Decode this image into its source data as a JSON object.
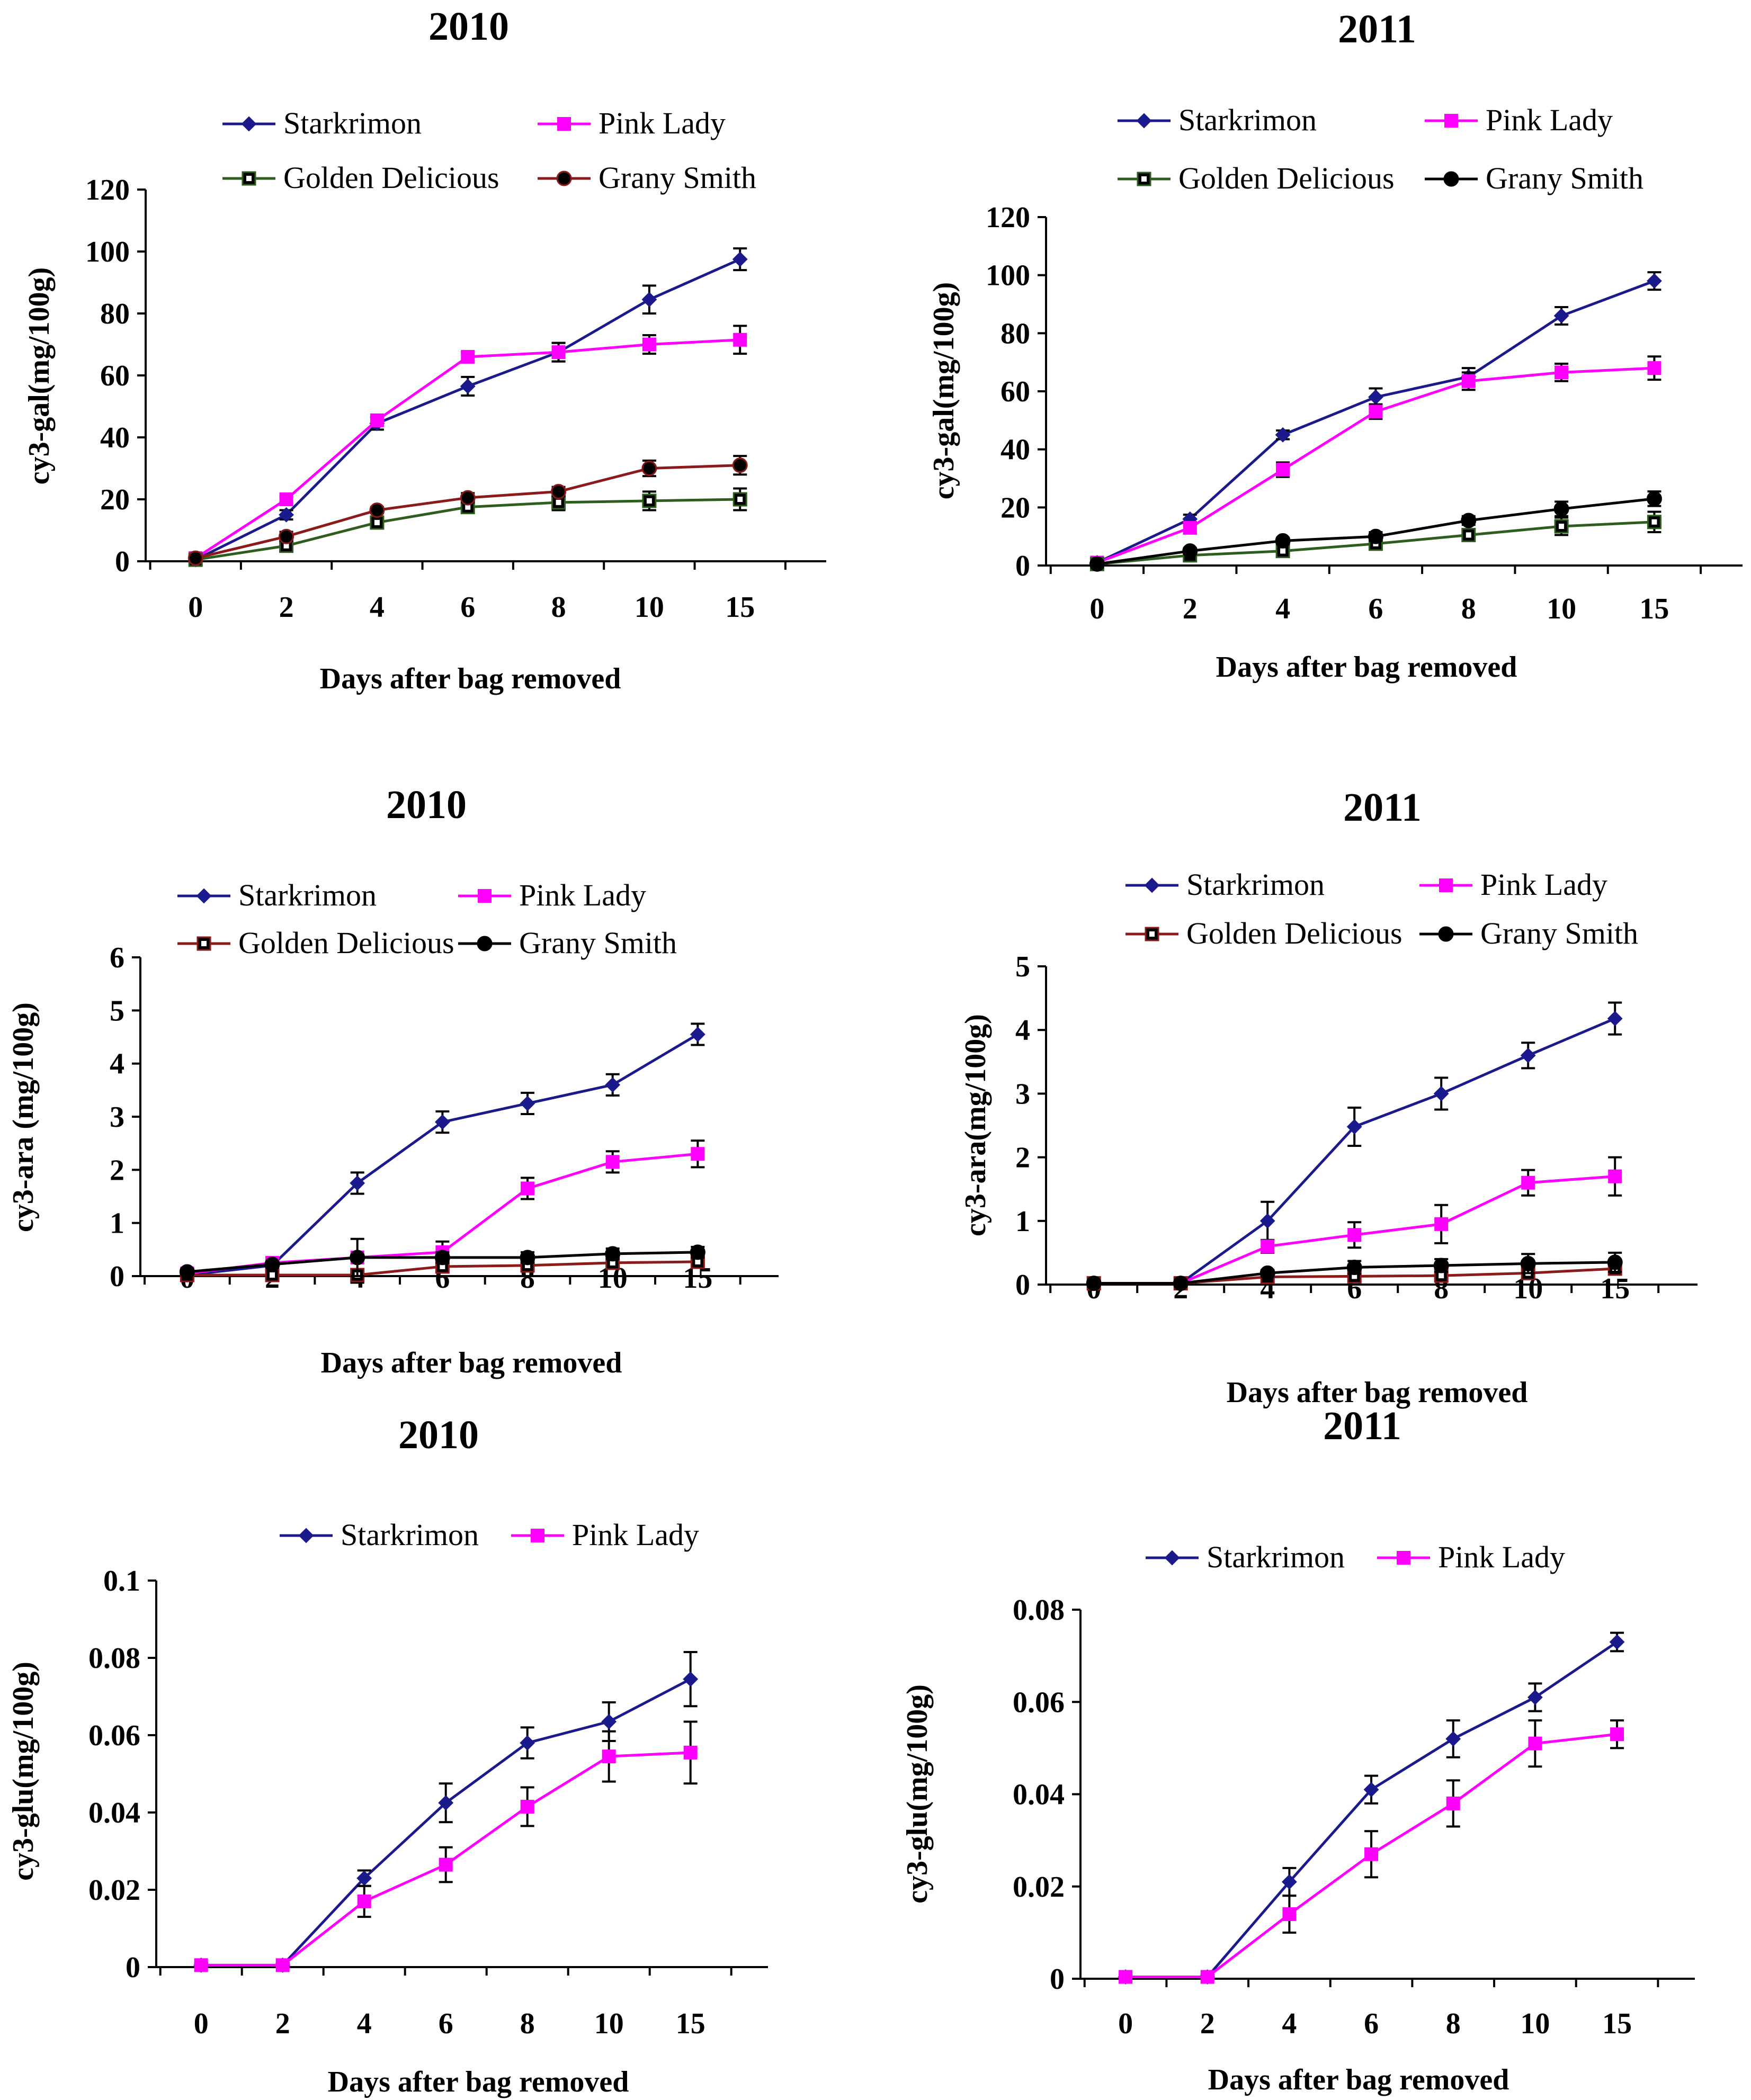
{
  "colors": {
    "starkrimon": "#1a1a8c",
    "pink_lady": "#ff00ff",
    "golden_delicious": "#2e5e1e",
    "grany_smith_brown": "#8b1a1a",
    "grany_smith_black": "#000000",
    "golden_delicious_red": "#8b1a1a"
  },
  "chart_data": [
    {
      "type": "line",
      "title": "2010",
      "xlabel": "Days after bag removed",
      "ylabel": "cy3-gal(mg/100g)",
      "categories": [
        "0",
        "2",
        "4",
        "6",
        "8",
        "10",
        "15"
      ],
      "ylim": [
        0,
        120
      ],
      "yticks": [
        "0",
        "20",
        "40",
        "60",
        "80",
        "100",
        "120"
      ],
      "series": [
        {
          "name": "Starkrimon",
          "marker": "diamond",
          "color": "#1a1a8c",
          "values": [
            0.5,
            15,
            44.5,
            56.5,
            67.5,
            84.5,
            97.5
          ],
          "errors": [
            1,
            1.5,
            2,
            3,
            3,
            4.5,
            3.5
          ]
        },
        {
          "name": "Pink Lady",
          "marker": "square",
          "color": "#ff00ff",
          "values": [
            1,
            20,
            45.5,
            66,
            67.5,
            70,
            71.5
          ],
          "errors": [
            1,
            1,
            1,
            1.5,
            3,
            3,
            4.5
          ]
        },
        {
          "name": "Golden Delicious",
          "marker": "hsquare",
          "color": "#2e5e1e",
          "values": [
            0.5,
            5,
            12.5,
            17.5,
            19,
            19.5,
            20
          ],
          "errors": [
            0.5,
            1,
            1.5,
            1.5,
            2.5,
            3,
            3.5
          ]
        },
        {
          "name": "Grany Smith",
          "marker": "circle",
          "color": "#8b1a1a",
          "values": [
            1,
            8,
            16.5,
            20.5,
            22.5,
            30,
            31
          ],
          "errors": [
            0.5,
            1.5,
            1,
            1.5,
            1.5,
            2.5,
            3
          ]
        }
      ]
    },
    {
      "type": "line",
      "title": "2011",
      "xlabel": "Days after bag removed",
      "ylabel": "cy3-gal(mg/100g)",
      "categories": [
        "0",
        "2",
        "4",
        "6",
        "8",
        "10",
        "15"
      ],
      "ylim": [
        0,
        120
      ],
      "yticks": [
        "0",
        "20",
        "40",
        "60",
        "80",
        "100",
        "120"
      ],
      "series": [
        {
          "name": "Starkrimon",
          "marker": "diamond",
          "color": "#1a1a8c",
          "values": [
            1,
            16,
            45,
            58,
            65,
            86,
            98
          ],
          "errors": [
            0.5,
            1.5,
            1.5,
            3,
            3,
            3,
            3
          ]
        },
        {
          "name": "Pink Lady",
          "marker": "square",
          "color": "#ff00ff",
          "values": [
            1,
            13,
            33,
            53,
            63.5,
            66.5,
            68
          ],
          "errors": [
            0.5,
            2,
            2.5,
            2.5,
            3,
            3,
            4
          ]
        },
        {
          "name": "Golden Delicious",
          "marker": "hsquare",
          "color": "#2e5e1e",
          "values": [
            0.5,
            3.5,
            5,
            7.5,
            10.5,
            13.5,
            15
          ],
          "errors": [
            0.5,
            1,
            1.5,
            1.5,
            1.5,
            3,
            3.5
          ]
        },
        {
          "name": "Grany Smith",
          "marker": "circle",
          "color": "#000000",
          "values": [
            0.5,
            5,
            8.5,
            10,
            15.5,
            19.5,
            23
          ],
          "errors": [
            0.5,
            1,
            1,
            1.5,
            1.5,
            2.5,
            2.5
          ]
        }
      ]
    },
    {
      "type": "line",
      "title": "2010",
      "xlabel": "Days after bag removed",
      "ylabel": "cy3-ara (mg/100g)",
      "categories": [
        "0",
        "2",
        "4",
        "6",
        "8",
        "10",
        "15"
      ],
      "ylim": [
        0,
        6
      ],
      "yticks": [
        "0",
        "1",
        "2",
        "3",
        "4",
        "5",
        "6"
      ],
      "series": [
        {
          "name": "Starkrimon",
          "marker": "diamond",
          "color": "#1a1a8c",
          "values": [
            0.02,
            0.2,
            1.75,
            2.9,
            3.25,
            3.6,
            4.55
          ],
          "errors": [
            0.1,
            0.1,
            0.2,
            0.2,
            0.2,
            0.2,
            0.2
          ]
        },
        {
          "name": "Pink Lady",
          "marker": "square",
          "color": "#ff00ff",
          "values": [
            0.05,
            0.25,
            0.35,
            0.45,
            1.65,
            2.15,
            2.3
          ],
          "errors": [
            0.05,
            0.05,
            0.05,
            0.2,
            0.2,
            0.2,
            0.25
          ]
        },
        {
          "name": "Golden Delicious",
          "marker": "hsquare",
          "color": "#8b1a1a",
          "values": [
            0.02,
            0.02,
            0.02,
            0.18,
            0.2,
            0.25,
            0.27
          ],
          "errors": [
            0.05,
            0.05,
            0.05,
            0.1,
            0.1,
            0.1,
            0.1
          ]
        },
        {
          "name": "Grany Smith",
          "marker": "circle",
          "color": "#000000",
          "values": [
            0.08,
            0.22,
            0.35,
            0.35,
            0.35,
            0.42,
            0.45
          ],
          "errors": [
            0.05,
            0.05,
            0.35,
            0.1,
            0.1,
            0.1,
            0.1
          ]
        }
      ]
    },
    {
      "type": "line",
      "title": "2011",
      "xlabel": "Days after bag removed",
      "ylabel": "cy3-ara(mg/100g)",
      "categories": [
        "0",
        "2",
        "4",
        "6",
        "8",
        "10",
        "15"
      ],
      "ylim": [
        0,
        5
      ],
      "yticks": [
        "0",
        "1",
        "2",
        "3",
        "4",
        "5"
      ],
      "series": [
        {
          "name": "Starkrimon",
          "marker": "diamond",
          "color": "#1a1a8c",
          "values": [
            0.02,
            0.02,
            1,
            2.48,
            3,
            3.6,
            4.18
          ],
          "errors": [
            0.05,
            0.05,
            0.3,
            0.3,
            0.25,
            0.2,
            0.25
          ]
        },
        {
          "name": "Pink Lady",
          "marker": "square",
          "color": "#ff00ff",
          "values": [
            0.02,
            0.02,
            0.6,
            0.78,
            0.95,
            1.6,
            1.7
          ],
          "errors": [
            0.05,
            0.05,
            0.1,
            0.2,
            0.3,
            0.2,
            0.3
          ]
        },
        {
          "name": "Golden Delicious",
          "marker": "hsquare",
          "color": "#8b1a1a",
          "values": [
            0.02,
            0.02,
            0.12,
            0.13,
            0.14,
            0.18,
            0.25
          ],
          "errors": [
            0.03,
            0.03,
            0.05,
            0.05,
            0.05,
            0.05,
            0.05
          ]
        },
        {
          "name": "Grany Smith",
          "marker": "circle",
          "color": "#000000",
          "values": [
            0.02,
            0.02,
            0.18,
            0.27,
            0.3,
            0.33,
            0.35
          ],
          "errors": [
            0.03,
            0.03,
            0.05,
            0.1,
            0.1,
            0.15,
            0.15
          ]
        }
      ]
    },
    {
      "type": "line",
      "title": "2010",
      "xlabel": "Days after bag removed",
      "ylabel": "cy3-glu(mg/100g)",
      "categories": [
        "0",
        "2",
        "4",
        "6",
        "8",
        "10",
        "15"
      ],
      "ylim": [
        0,
        0.1
      ],
      "yticks": [
        "0",
        "0.02",
        "0.04",
        "0.06",
        "0.08",
        "0.1"
      ],
      "series": [
        {
          "name": "Starkrimon",
          "marker": "diamond",
          "color": "#1a1a8c",
          "values": [
            0.0005,
            0.0005,
            0.023,
            0.0425,
            0.058,
            0.0635,
            0.0745
          ],
          "errors": [
            0.0005,
            0.0005,
            0.002,
            0.005,
            0.004,
            0.005,
            0.007
          ]
        },
        {
          "name": "Pink Lady",
          "marker": "square",
          "color": "#ff00ff",
          "values": [
            0.0005,
            0.0005,
            0.017,
            0.0265,
            0.0415,
            0.0545,
            0.0555
          ],
          "errors": [
            0.0005,
            0.0005,
            0.004,
            0.0045,
            0.005,
            0.0065,
            0.008
          ]
        }
      ]
    },
    {
      "type": "line",
      "title": "2011",
      "xlabel": "Days after bag removed",
      "ylabel": "cy3-glu(mg/100g)",
      "categories": [
        "0",
        "2",
        "4",
        "6",
        "8",
        "10",
        "15"
      ],
      "ylim": [
        0,
        0.08
      ],
      "yticks": [
        "0",
        "0.02",
        "0.04",
        "0.06",
        "0.08"
      ],
      "series": [
        {
          "name": "Starkrimon",
          "marker": "diamond",
          "color": "#1a1a8c",
          "values": [
            0.0004,
            0.0004,
            0.021,
            0.041,
            0.052,
            0.061,
            0.073
          ],
          "errors": [
            0.0004,
            0.0004,
            0.003,
            0.003,
            0.004,
            0.003,
            0.002
          ]
        },
        {
          "name": "Pink Lady",
          "marker": "square",
          "color": "#ff00ff",
          "values": [
            0.0004,
            0.0004,
            0.014,
            0.027,
            0.038,
            0.051,
            0.053
          ],
          "errors": [
            0.0004,
            0.0004,
            0.004,
            0.005,
            0.005,
            0.005,
            0.003
          ]
        }
      ]
    }
  ]
}
